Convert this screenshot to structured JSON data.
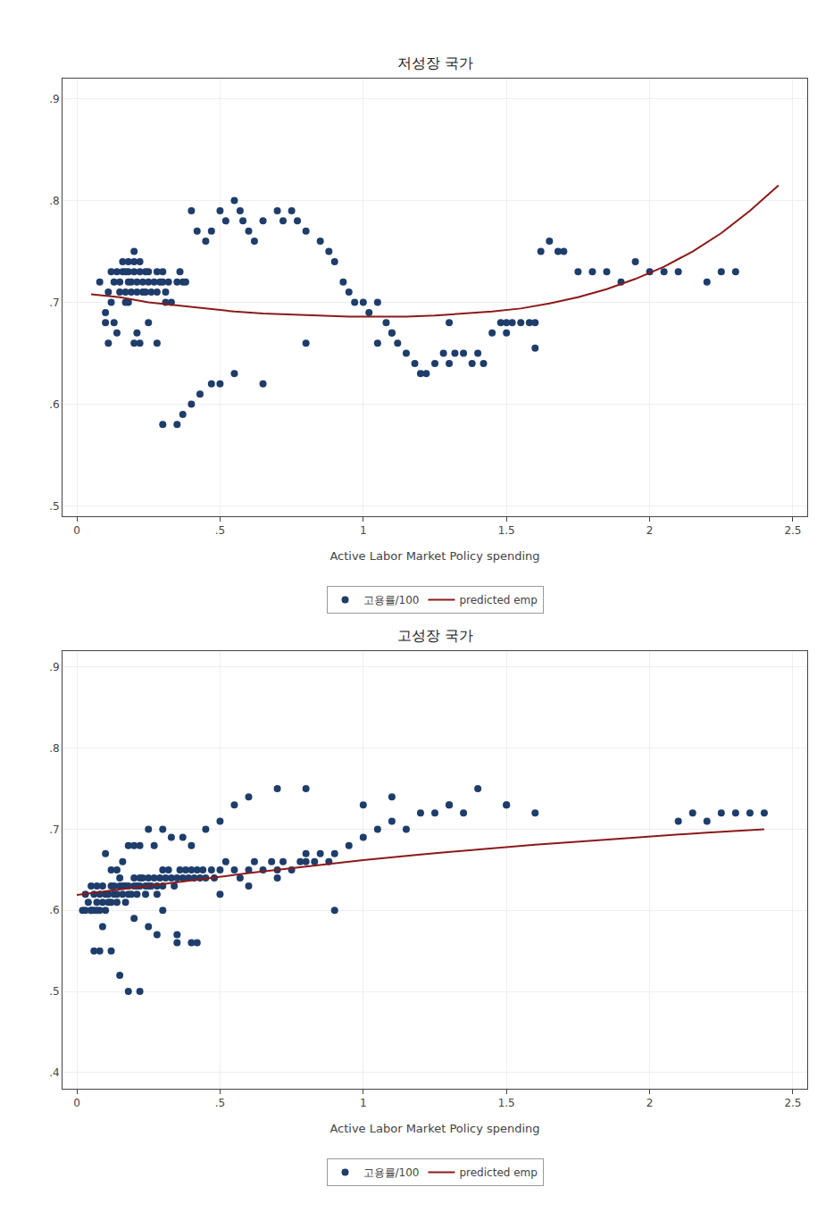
{
  "chart_data": [
    {
      "type": "scatter",
      "title": "저성장 국가",
      "x_label": "Active Labor Market Policy spending",
      "xlim": [
        -0.05,
        2.55
      ],
      "ylim": [
        0.49,
        0.92
      ],
      "xticks": [
        0,
        {
          "value": 0.5,
          "label": ".5"
        },
        1,
        1.5,
        2,
        2.5
      ],
      "yticks": [
        {
          "value": 0.5,
          "label": ".5"
        },
        {
          "value": 0.6,
          "label": ".6"
        },
        {
          "value": 0.7,
          "label": ".7"
        },
        {
          "value": 0.8,
          "label": ".8"
        },
        {
          "value": 0.9,
          "label": ".9"
        }
      ],
      "grid": true,
      "legend": "bottom",
      "series": [
        {
          "name": "고용률/100",
          "type": "scatter",
          "marker": "circle",
          "color": "#1e3d6b",
          "x": [
            0.08,
            0.1,
            0.11,
            0.12,
            0.12,
            0.13,
            0.14,
            0.15,
            0.15,
            0.16,
            0.16,
            0.17,
            0.17,
            0.17,
            0.18,
            0.18,
            0.18,
            0.19,
            0.19,
            0.2,
            0.2,
            0.2,
            0.21,
            0.21,
            0.22,
            0.22,
            0.23,
            0.23,
            0.24,
            0.24,
            0.25,
            0.25,
            0.26,
            0.27,
            0.28,
            0.28,
            0.29,
            0.3,
            0.3,
            0.31,
            0.31,
            0.32,
            0.33,
            0.35,
            0.36,
            0.37,
            0.38,
            0.4,
            0.42,
            0.45,
            0.47,
            0.5,
            0.52,
            0.55,
            0.57,
            0.58,
            0.6,
            0.62,
            0.65,
            0.7,
            0.72,
            0.75,
            0.77,
            0.8,
            0.85,
            0.88,
            0.9,
            0.93,
            0.95,
            0.97,
            1.0,
            1.02,
            1.05,
            1.08,
            1.1,
            1.12,
            1.15,
            1.18,
            1.2,
            1.22,
            1.25,
            1.28,
            1.3,
            1.32,
            1.35,
            1.38,
            1.4,
            1.42,
            1.45,
            1.48,
            1.5,
            1.52,
            1.55,
            1.58,
            1.6,
            1.62,
            1.65,
            1.68,
            1.7,
            1.75,
            1.8,
            1.85,
            1.9,
            1.95,
            2.0,
            2.05,
            2.1,
            2.2,
            2.25,
            2.3,
            0.1,
            0.11,
            0.13,
            0.14,
            0.18,
            0.2,
            0.21,
            0.22,
            0.25,
            0.28,
            0.3,
            0.35,
            0.37,
            0.4,
            0.43,
            0.47,
            0.5,
            0.55,
            0.65,
            0.8,
            1.05,
            1.1,
            1.3,
            1.5,
            1.6
          ],
          "values": [
            0.72,
            0.68,
            0.71,
            0.73,
            0.7,
            0.72,
            0.73,
            0.72,
            0.71,
            0.73,
            0.74,
            0.71,
            0.7,
            0.73,
            0.73,
            0.72,
            0.74,
            0.71,
            0.72,
            0.73,
            0.74,
            0.75,
            0.72,
            0.71,
            0.73,
            0.74,
            0.72,
            0.71,
            0.71,
            0.73,
            0.72,
            0.73,
            0.71,
            0.72,
            0.73,
            0.71,
            0.72,
            0.72,
            0.73,
            0.71,
            0.7,
            0.72,
            0.7,
            0.72,
            0.73,
            0.72,
            0.72,
            0.79,
            0.77,
            0.76,
            0.77,
            0.79,
            0.78,
            0.8,
            0.79,
            0.78,
            0.77,
            0.76,
            0.78,
            0.79,
            0.78,
            0.79,
            0.78,
            0.77,
            0.76,
            0.75,
            0.74,
            0.72,
            0.71,
            0.7,
            0.7,
            0.69,
            0.7,
            0.68,
            0.67,
            0.66,
            0.65,
            0.64,
            0.63,
            0.63,
            0.64,
            0.65,
            0.64,
            0.65,
            0.65,
            0.64,
            0.65,
            0.64,
            0.67,
            0.68,
            0.67,
            0.68,
            0.68,
            0.68,
            0.68,
            0.75,
            0.76,
            0.75,
            0.75,
            0.73,
            0.73,
            0.73,
            0.72,
            0.74,
            0.73,
            0.73,
            0.73,
            0.72,
            0.73,
            0.73,
            0.69,
            0.66,
            0.68,
            0.67,
            0.7,
            0.66,
            0.67,
            0.66,
            0.68,
            0.66,
            0.58,
            0.58,
            0.59,
            0.6,
            0.61,
            0.62,
            0.62,
            0.63,
            0.62,
            0.66,
            0.66,
            0.67,
            0.68,
            0.68,
            0.655
          ]
        },
        {
          "name": "predicted emp",
          "type": "line",
          "line_style": "solid",
          "color": "#8b1a1a",
          "x": [
            0.05,
            0.15,
            0.25,
            0.35,
            0.45,
            0.55,
            0.65,
            0.75,
            0.85,
            0.95,
            1.05,
            1.15,
            1.25,
            1.35,
            1.45,
            1.55,
            1.65,
            1.75,
            1.85,
            1.95,
            2.05,
            2.15,
            2.25,
            2.35,
            2.45
          ],
          "values": [
            0.708,
            0.705,
            0.7,
            0.697,
            0.694,
            0.691,
            0.689,
            0.688,
            0.687,
            0.686,
            0.686,
            0.686,
            0.687,
            0.689,
            0.691,
            0.694,
            0.699,
            0.705,
            0.713,
            0.723,
            0.735,
            0.75,
            0.768,
            0.79,
            0.815
          ]
        }
      ]
    },
    {
      "type": "scatter",
      "title": "고성장 국가",
      "x_label": "Active Labor Market Policy spending",
      "xlim": [
        -0.05,
        2.55
      ],
      "ylim": [
        0.38,
        0.92
      ],
      "xticks": [
        0,
        {
          "value": 0.5,
          "label": ".5"
        },
        1,
        1.5,
        2,
        2.5
      ],
      "yticks": [
        {
          "value": 0.4,
          "label": ".4"
        },
        {
          "value": 0.5,
          "label": ".5"
        },
        {
          "value": 0.6,
          "label": ".6"
        },
        {
          "value": 0.7,
          "label": ".7"
        },
        {
          "value": 0.8,
          "label": ".8"
        },
        {
          "value": 0.9,
          "label": ".9"
        }
      ],
      "grid": true,
      "legend": "bottom",
      "series": [
        {
          "name": "고용률/100",
          "type": "scatter",
          "marker": "circle",
          "color": "#1e3d6b",
          "x": [
            0.02,
            0.03,
            0.04,
            0.05,
            0.05,
            0.06,
            0.06,
            0.07,
            0.07,
            0.08,
            0.08,
            0.09,
            0.09,
            0.1,
            0.1,
            0.11,
            0.11,
            0.12,
            0.12,
            0.13,
            0.13,
            0.14,
            0.14,
            0.15,
            0.15,
            0.16,
            0.16,
            0.17,
            0.17,
            0.18,
            0.18,
            0.19,
            0.2,
            0.2,
            0.21,
            0.21,
            0.22,
            0.22,
            0.23,
            0.24,
            0.24,
            0.25,
            0.25,
            0.26,
            0.27,
            0.28,
            0.28,
            0.29,
            0.3,
            0.3,
            0.31,
            0.32,
            0.33,
            0.34,
            0.35,
            0.36,
            0.37,
            0.38,
            0.39,
            0.4,
            0.41,
            0.42,
            0.43,
            0.44,
            0.45,
            0.47,
            0.48,
            0.5,
            0.52,
            0.55,
            0.57,
            0.6,
            0.62,
            0.65,
            0.68,
            0.7,
            0.72,
            0.75,
            0.78,
            0.8,
            0.83,
            0.85,
            0.88,
            0.9,
            0.95,
            1.0,
            1.05,
            1.1,
            1.15,
            1.2,
            1.25,
            1.3,
            1.35,
            1.4,
            1.5,
            1.6,
            2.1,
            2.15,
            2.2,
            2.25,
            2.3,
            2.35,
            2.4,
            0.03,
            0.05,
            0.07,
            0.09,
            0.1,
            0.12,
            0.14,
            0.16,
            0.18,
            0.2,
            0.22,
            0.25,
            0.27,
            0.3,
            0.33,
            0.37,
            0.4,
            0.45,
            0.5,
            0.55,
            0.6,
            0.7,
            0.8,
            1.0,
            1.1,
            1.3,
            1.5,
            0.06,
            0.08,
            0.12,
            0.15,
            0.18,
            0.22,
            0.28,
            0.35,
            0.42,
            0.5,
            0.6,
            0.7,
            0.8,
            0.9,
            0.2,
            0.25,
            0.3,
            0.35,
            0.4
          ],
          "values": [
            0.6,
            0.62,
            0.61,
            0.63,
            0.6,
            0.62,
            0.6,
            0.61,
            0.63,
            0.62,
            0.6,
            0.61,
            0.63,
            0.62,
            0.6,
            0.61,
            0.62,
            0.63,
            0.61,
            0.62,
            0.63,
            0.61,
            0.62,
            0.63,
            0.64,
            0.63,
            0.62,
            0.61,
            0.63,
            0.62,
            0.63,
            0.62,
            0.63,
            0.64,
            0.62,
            0.63,
            0.64,
            0.63,
            0.64,
            0.63,
            0.62,
            0.63,
            0.64,
            0.63,
            0.64,
            0.63,
            0.62,
            0.64,
            0.65,
            0.63,
            0.64,
            0.65,
            0.64,
            0.63,
            0.64,
            0.65,
            0.64,
            0.65,
            0.64,
            0.65,
            0.64,
            0.65,
            0.64,
            0.65,
            0.64,
            0.65,
            0.64,
            0.65,
            0.66,
            0.65,
            0.64,
            0.65,
            0.66,
            0.65,
            0.66,
            0.65,
            0.66,
            0.65,
            0.66,
            0.67,
            0.66,
            0.67,
            0.66,
            0.67,
            0.68,
            0.69,
            0.7,
            0.71,
            0.7,
            0.72,
            0.72,
            0.73,
            0.72,
            0.75,
            0.73,
            0.72,
            0.71,
            0.72,
            0.71,
            0.72,
            0.72,
            0.72,
            0.72,
            0.6,
            0.6,
            0.6,
            0.58,
            0.67,
            0.65,
            0.65,
            0.66,
            0.68,
            0.68,
            0.68,
            0.7,
            0.68,
            0.7,
            0.69,
            0.69,
            0.68,
            0.7,
            0.71,
            0.73,
            0.74,
            0.75,
            0.75,
            0.73,
            0.74,
            0.73,
            0.73,
            0.55,
            0.55,
            0.55,
            0.52,
            0.5,
            0.5,
            0.57,
            0.56,
            0.56,
            0.62,
            0.63,
            0.64,
            0.66,
            0.6,
            0.59,
            0.58,
            0.6,
            0.57,
            0.56
          ]
        },
        {
          "name": "predicted emp",
          "type": "line",
          "line_style": "solid",
          "color": "#8b1a1a",
          "x": [
            0.0,
            0.2,
            0.4,
            0.6,
            0.8,
            1.0,
            1.2,
            1.4,
            1.6,
            1.8,
            2.0,
            2.2,
            2.4
          ],
          "values": [
            0.619,
            0.628,
            0.637,
            0.646,
            0.654,
            0.662,
            0.669,
            0.675,
            0.681,
            0.686,
            0.691,
            0.696,
            0.7
          ]
        }
      ]
    }
  ]
}
